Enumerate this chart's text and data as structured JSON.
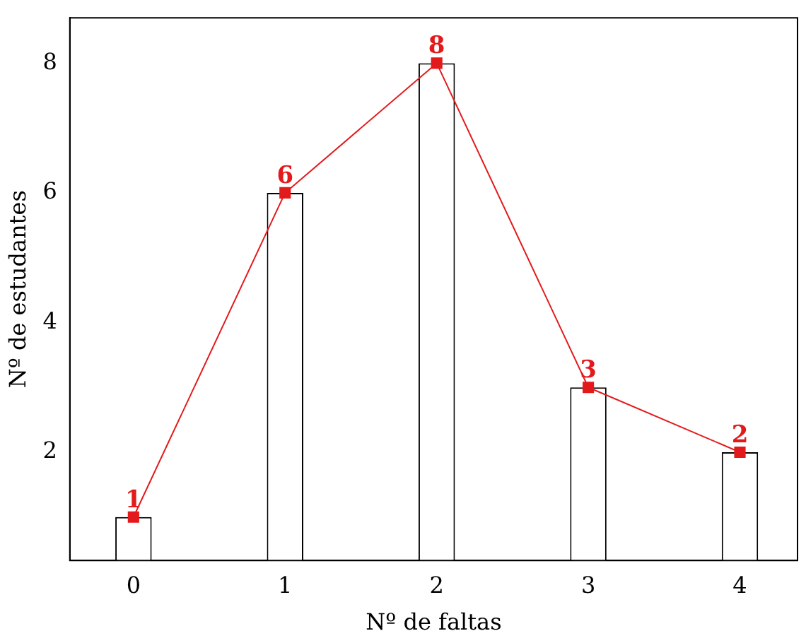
{
  "chart_data": {
    "type": "bar",
    "xlabel": "Nº de faltas",
    "ylabel": "Nº de estudantes",
    "x": [
      0,
      1,
      2,
      3,
      4
    ],
    "series": [
      {
        "color": "#ffffff",
        "values": [
          1,
          6,
          8,
          3,
          2
        ]
      },
      {
        "type": "line",
        "color": "#e31a1c",
        "values": [
          1,
          6,
          8,
          3,
          2
        ],
        "value_labels": [
          "1",
          "6",
          "8",
          "3",
          "2"
        ]
      }
    ],
    "xlim": [
      -0.42,
      4.38
    ],
    "xticks": [
      0,
      1,
      2,
      3,
      4
    ],
    "ylim": [
      0.33,
      8.7
    ],
    "yticks": [
      2,
      4,
      6,
      8
    ],
    "grid": false,
    "legend": false,
    "marker": "square",
    "line_style": "solid"
  }
}
